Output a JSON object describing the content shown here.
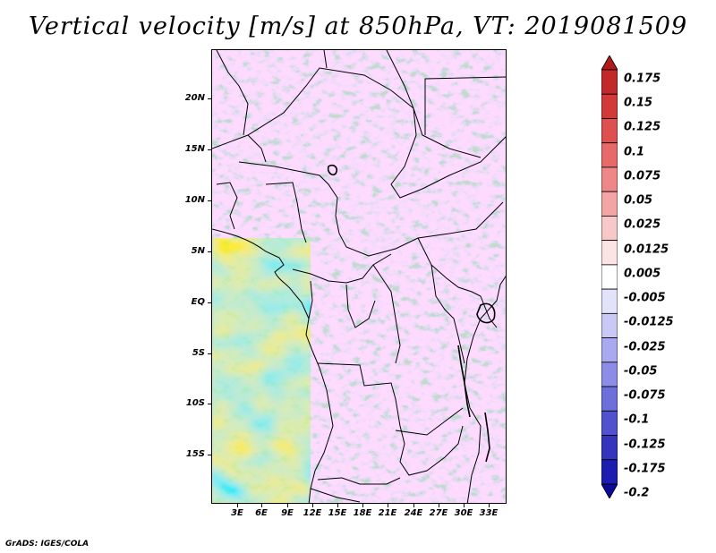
{
  "title": "Vertical velocity [m/s] at 850hPa, VT: 2019081509",
  "credit": "GrADS: IGES/COLA",
  "map": {
    "lat_labels": [
      "20N",
      "15N",
      "10N",
      "5N",
      "EQ",
      "5S",
      "10S",
      "15S"
    ],
    "lon_labels": [
      "3E",
      "6E",
      "9E",
      "12E",
      "15E",
      "18E",
      "21E",
      "24E",
      "27E",
      "30E",
      "33E"
    ]
  },
  "colorbar": {
    "labels": [
      "0.175",
      "0.15",
      "0.125",
      "0.1",
      "0.075",
      "0.05",
      "0.025",
      "0.0125",
      "0.005",
      "-0.005",
      "-0.0125",
      "-0.025",
      "-0.05",
      "-0.075",
      "-0.1",
      "-0.125",
      "-0.175",
      "-0.2"
    ],
    "colors": [
      "#b01c1c",
      "#c22a2a",
      "#d23a3a",
      "#de5050",
      "#e66a6a",
      "#ee8787",
      "#f3a5a5",
      "#f8c7c7",
      "#fde4e4",
      "#ffffff",
      "#e2e2fb",
      "#c9c9f6",
      "#a9a9ef",
      "#8d8de7",
      "#6f6fdc",
      "#5252cf",
      "#3434bd",
      "#1d1db0",
      "#0b0b98"
    ]
  }
}
